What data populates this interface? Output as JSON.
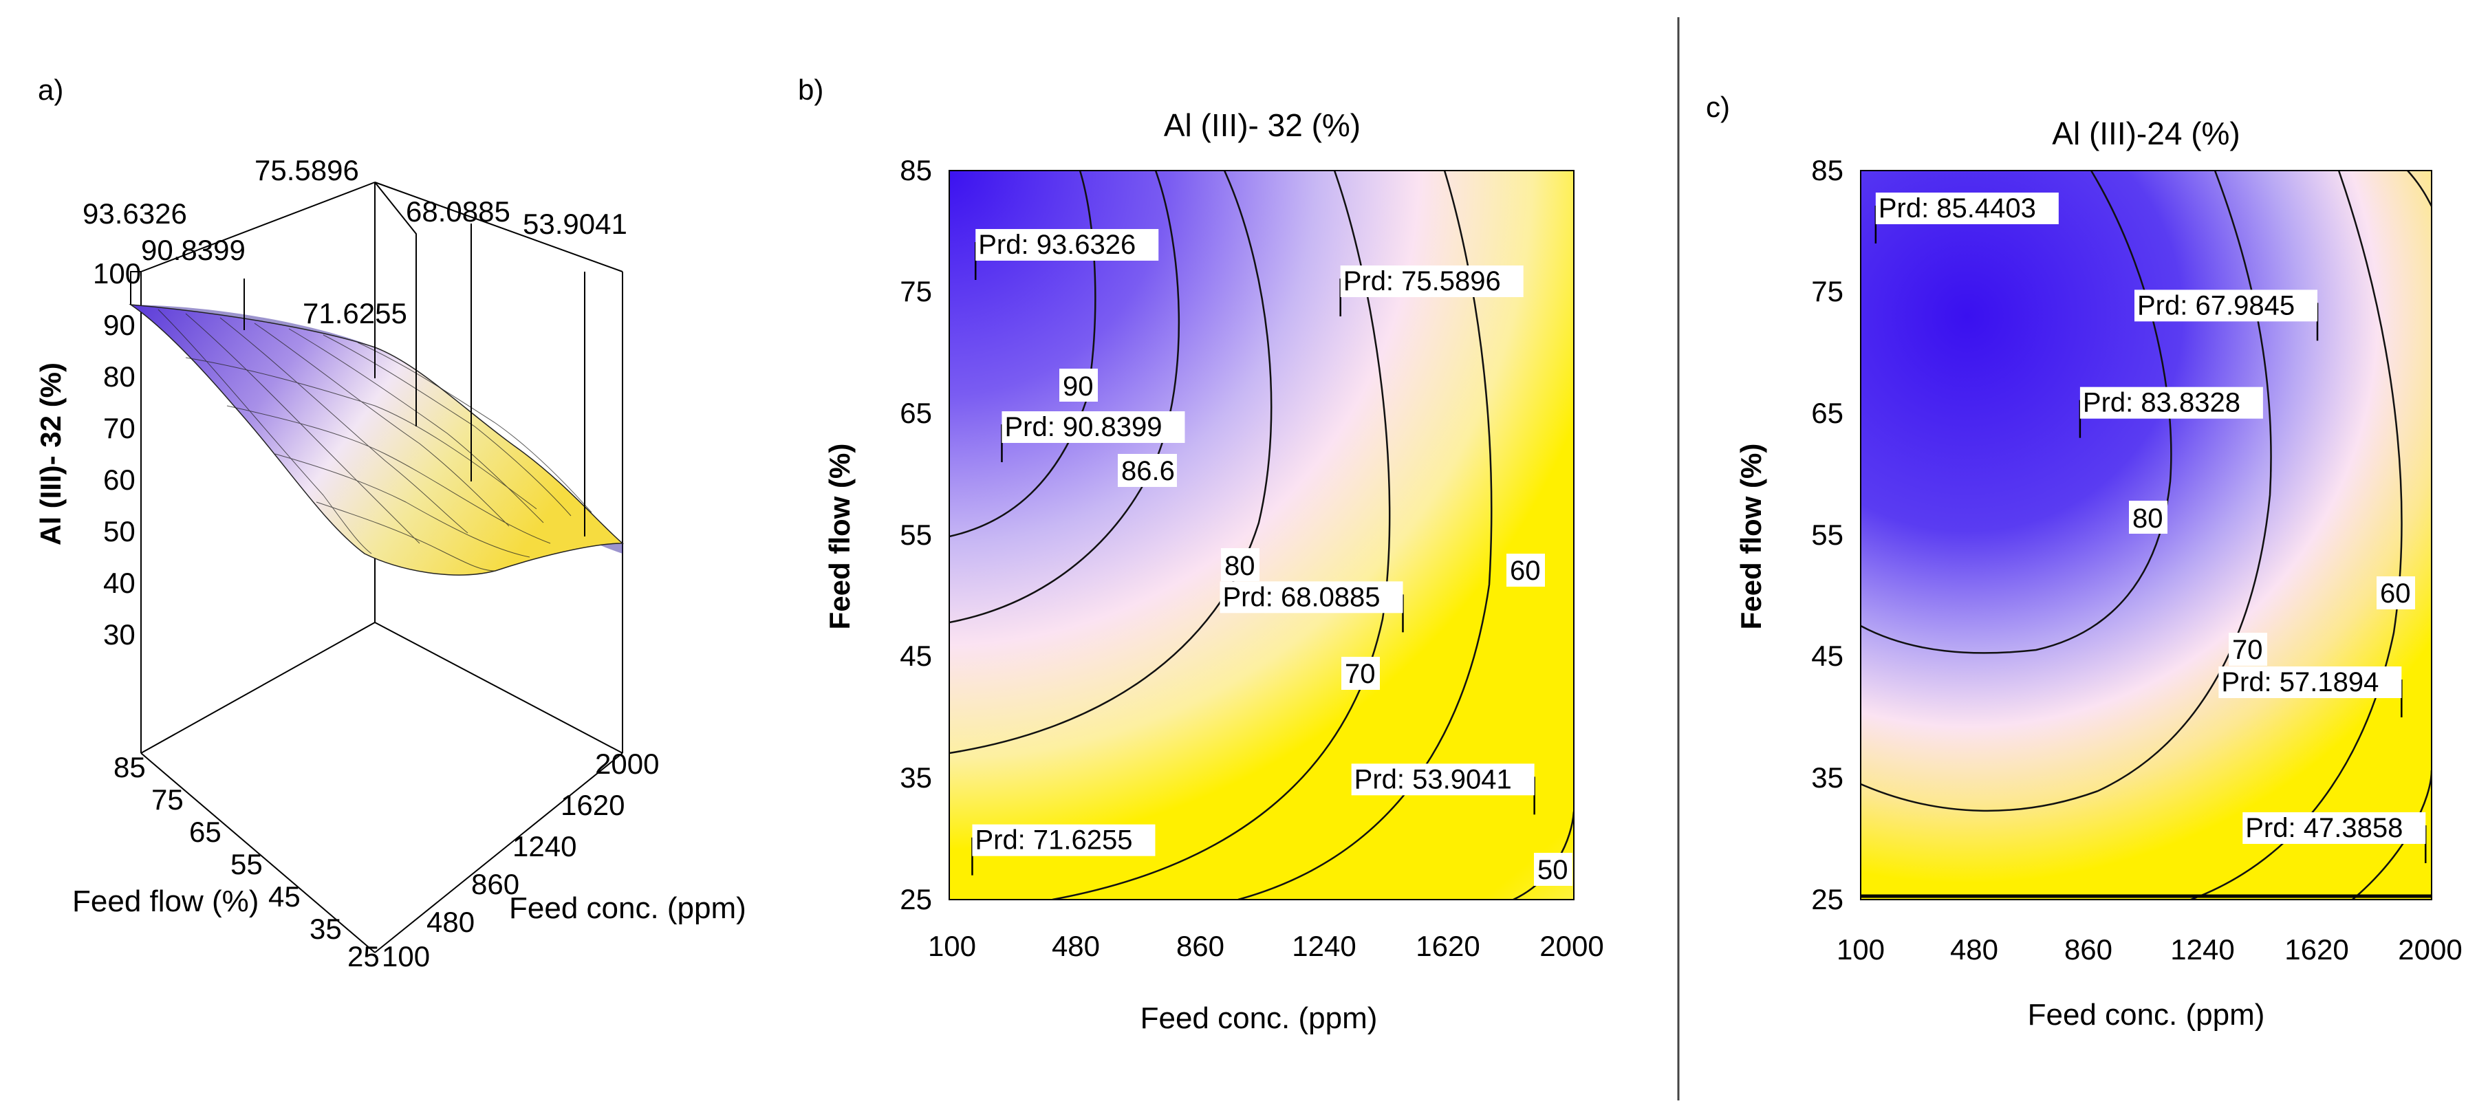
{
  "panels": [
    {
      "label": "a)",
      "type": "surface3d",
      "zlabel": "Al (III)- 32 (%)",
      "xlabel": "Feed conc. (ppm)",
      "ylabel": "Feed flow (%)",
      "z_ticks": [
        "30",
        "40",
        "50",
        "60",
        "70",
        "80",
        "90",
        "100"
      ],
      "x_ticks": [
        "100",
        "480",
        "860",
        "1240",
        "1620",
        "2000"
      ],
      "y_ticks": [
        "25",
        "35",
        "45",
        "55",
        "65",
        "75",
        "85"
      ],
      "points": [
        "93.6326",
        "90.8399",
        "71.6255",
        "75.5896",
        "68.0885",
        "53.9041"
      ]
    },
    {
      "label": "b)",
      "type": "contour",
      "title": "Al (III)- 32 (%)",
      "xlabel": "Feed conc. (ppm)",
      "ylabel": "Feed flow (%)",
      "x_ticks": [
        "100",
        "480",
        "860",
        "1240",
        "1620",
        "2000"
      ],
      "y_ticks": [
        "25",
        "35",
        "45",
        "55",
        "65",
        "75",
        "85"
      ],
      "contour_labels": [
        "90",
        "86.6",
        "80",
        "70",
        "60",
        "50"
      ],
      "predictions": [
        {
          "text": "Prd: 93.6326",
          "x": 180,
          "y": 76
        },
        {
          "text": "Prd: 90.8399",
          "x": 260,
          "y": 61
        },
        {
          "text": "Prd: 75.5896",
          "x": 1290,
          "y": 73
        },
        {
          "text": "Prd: 68.0885",
          "x": 1480,
          "y": 47
        },
        {
          "text": "Prd: 53.9041",
          "x": 1880,
          "y": 32
        },
        {
          "text": "Prd: 71.6255",
          "x": 170,
          "y": 27
        }
      ]
    },
    {
      "label": "c)",
      "type": "contour",
      "title": "Al (III)-24 (%)",
      "xlabel": "Feed conc. (ppm)",
      "ylabel": "Feed flow (%)",
      "x_ticks": [
        "100",
        "480",
        "860",
        "1240",
        "1620",
        "2000"
      ],
      "y_ticks": [
        "25",
        "35",
        "45",
        "55",
        "65",
        "75",
        "85"
      ],
      "contour_labels": [
        "80",
        "70",
        "60"
      ],
      "predictions": [
        {
          "text": "Prd: 85.4403",
          "x": 150,
          "y": 79
        },
        {
          "text": "Prd: 83.8328",
          "x": 830,
          "y": 63
        },
        {
          "text": "Prd: 67.9845",
          "x": 1620,
          "y": 71
        },
        {
          "text": "Prd: 57.1894",
          "x": 1900,
          "y": 40
        },
        {
          "text": "Prd: 47.3858",
          "x": 1980,
          "y": 28
        }
      ]
    }
  ],
  "chart_data": [
    {
      "type": "surface3d",
      "zlabel": "Al (III)- 32 (%)",
      "xlabel": "Feed conc. (ppm)",
      "ylabel": "Feed flow (%)",
      "xlim": [
        100,
        2000
      ],
      "ylim": [
        25,
        85
      ],
      "zlim": [
        30,
        100
      ],
      "highlighted_values": [
        93.6326,
        90.8399,
        71.6255,
        75.5896,
        68.0885,
        53.9041
      ]
    },
    {
      "type": "contour",
      "title": "Al (III)- 32 (%)",
      "xlabel": "Feed conc. (ppm)",
      "ylabel": "Feed flow (%)",
      "xlim": [
        100,
        2000
      ],
      "ylim": [
        25,
        85
      ],
      "contour_levels": [
        50,
        60,
        70,
        80,
        86.6,
        90
      ],
      "colors": {
        "high": "#3a10f0",
        "mid": "#fbe3f2",
        "low": "#fff000"
      },
      "predictions": [
        {
          "x": 180,
          "y": 76,
          "value": 93.6326
        },
        {
          "x": 260,
          "y": 61,
          "value": 90.8399
        },
        {
          "x": 1290,
          "y": 73,
          "value": 75.5896
        },
        {
          "x": 1480,
          "y": 47,
          "value": 68.0885
        },
        {
          "x": 1880,
          "y": 32,
          "value": 53.9041
        },
        {
          "x": 170,
          "y": 27,
          "value": 71.6255
        }
      ]
    },
    {
      "type": "contour",
      "title": "Al (III)-24 (%)",
      "xlabel": "Feed conc. (ppm)",
      "ylabel": "Feed flow (%)",
      "xlim": [
        100,
        2000
      ],
      "ylim": [
        25,
        85
      ],
      "contour_levels": [
        50,
        60,
        70,
        80
      ],
      "colors": {
        "high": "#3a10f0",
        "mid": "#fbe3f2",
        "low": "#fff000"
      },
      "predictions": [
        {
          "x": 150,
          "y": 79,
          "value": 85.4403
        },
        {
          "x": 830,
          "y": 63,
          "value": 83.8328
        },
        {
          "x": 1620,
          "y": 71,
          "value": 67.9845
        },
        {
          "x": 1900,
          "y": 40,
          "value": 57.1894
        },
        {
          "x": 1980,
          "y": 28,
          "value": 47.3858
        }
      ]
    }
  ]
}
